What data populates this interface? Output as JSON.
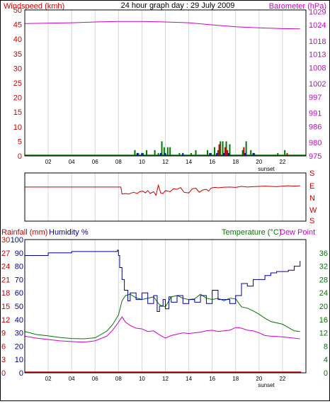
{
  "header": {
    "left_label": "Windspeed (kmh)",
    "title": "24 hour graph day : 29 July 2009",
    "right_label": "Barometer (hPa)"
  },
  "colors": {
    "windspeed": "#cc0000",
    "barometer": "#cc00cc",
    "wind_dir": "#cc0000",
    "gust": "#007700",
    "avg": "#0000cc",
    "rainfall": "#cc0000",
    "humidity": "#000099",
    "temperature": "#007700",
    "dewpoint": "#cc00cc",
    "grid": "#d6d6d6"
  },
  "x_axis": {
    "tick_labels": [
      "02",
      "04",
      "06",
      "08",
      "10",
      "12",
      "14",
      "16",
      "18",
      "20",
      "22"
    ],
    "sunset_label": "sunset"
  },
  "panel2": {
    "dir_labels": [
      "S",
      "E",
      "N",
      "W",
      "S"
    ]
  },
  "panel3": {
    "rain_label": "Rainfall (mm)",
    "humidity_label": "Humidity %",
    "temp_label": "Temperature (°C)",
    "dew_label": "Dew Point"
  },
  "chart_data": [
    {
      "type": "line",
      "title": "24 hour graph day : 29 July 2009",
      "x_unit": "hour",
      "xlim": [
        0,
        24
      ],
      "y_left": {
        "label": "Windspeed (kmh)",
        "ticks": [
          0,
          5,
          10,
          15,
          20,
          25,
          30,
          35,
          40,
          45,
          50
        ],
        "ylim": [
          0,
          50
        ]
      },
      "y_right": {
        "label": "Barometer (hPa)",
        "ticks": [
          975,
          980,
          986,
          991,
          997,
          1002,
          1008,
          1013,
          1018,
          1024,
          1029
        ],
        "ylim": [
          975,
          1029.6
        ]
      },
      "series": [
        {
          "name": "Barometer (hPa)",
          "axis": "right",
          "x": [
            0,
            4,
            6,
            8,
            10,
            12,
            14,
            16,
            18,
            19,
            20,
            22,
            23.5
          ],
          "values": [
            1024.5,
            1024.8,
            1025.1,
            1025.3,
            1025.3,
            1025.1,
            1024.8,
            1024.0,
            1023.3,
            1023.1,
            1022.9,
            1022.6,
            1022.5
          ]
        },
        {
          "axis": "left",
          "style": "bars-green",
          "x": [
            9.4,
            9.7,
            10.1,
            10.4,
            11.1,
            11.4,
            11.7,
            11.9,
            12.2,
            12.4,
            13.2,
            14.2,
            14.6,
            15.6,
            15.9,
            16.2,
            16.5,
            16.7,
            16.9,
            17.2,
            17.5,
            18.6,
            18.9,
            19.3,
            19.6,
            21.6,
            22.2
          ],
          "values": [
            2,
            1,
            1,
            2,
            2,
            1,
            5,
            3,
            3,
            3,
            1,
            1,
            2,
            2,
            1,
            3,
            2,
            5,
            5,
            5,
            4,
            2,
            5,
            2,
            1,
            1,
            2
          ]
        },
        {
          "axis": "left",
          "style": "bars-blue",
          "x": [
            9.6,
            10.0,
            11.6,
            12.0,
            13.5,
            15.8,
            16.4,
            17.0,
            17.4,
            18.8,
            19.5
          ],
          "values": [
            1,
            1,
            1,
            1,
            1,
            1,
            1,
            1,
            1,
            1,
            1
          ]
        },
        {
          "axis": "left",
          "style": "bars-red",
          "x": [
            16.6,
            17.1,
            17.3,
            18.7,
            22.4
          ],
          "values": [
            4,
            3,
            2,
            3,
            1
          ]
        }
      ]
    },
    {
      "type": "line",
      "xlim": [
        0,
        24
      ],
      "y_left": {
        "ticks": [
          "S",
          "E",
          "N",
          "W",
          "S"
        ],
        "ylim": [
          0,
          360
        ]
      },
      "series": [
        {
          "axis": "left",
          "x": [
            0,
            8.2,
            8.3,
            8.6,
            8.9,
            9.1,
            9.3,
            9.6,
            9.8,
            10.1,
            10.3,
            10.5,
            10.7,
            11.0,
            11.2,
            11.4,
            11.6,
            11.8,
            12.0,
            12.2,
            12.4,
            12.7,
            13.0,
            13.3,
            13.6,
            14.0,
            14.3,
            14.6,
            14.9,
            15.2,
            15.5,
            15.7,
            15.9,
            16.1,
            16.3,
            16.5,
            17.0,
            17.5,
            18.0,
            18.5,
            19.0,
            19.5,
            20.0,
            20.5,
            21.0,
            21.5,
            22.0,
            22.5,
            23.0,
            23.5
          ],
          "values": [
            265,
            265,
            205,
            210,
            205,
            215,
            220,
            210,
            225,
            230,
            215,
            235,
            210,
            225,
            195,
            280,
            215,
            210,
            235,
            230,
            225,
            250,
            245,
            260,
            220,
            215,
            250,
            255,
            220,
            240,
            245,
            230,
            255,
            260,
            262,
            258,
            263,
            265,
            262,
            270,
            265,
            268,
            270,
            272,
            270,
            268,
            272,
            275,
            272,
            275
          ]
        }
      ]
    },
    {
      "type": "line",
      "xlim": [
        0,
        24
      ],
      "y_left_outer": {
        "label": "Rainfall (mm)",
        "ticks": [
          0,
          3,
          6,
          9,
          12,
          15,
          18,
          21,
          24,
          27,
          30
        ],
        "ylim": [
          0,
          30
        ]
      },
      "y_left_inner": {
        "label": "Humidity %",
        "ticks": [
          0,
          10,
          20,
          30,
          40,
          50,
          60,
          70,
          80,
          90,
          100
        ],
        "ylim": [
          0,
          100
        ]
      },
      "y_right": {
        "label": "Temperature (°C)",
        "ticks": [
          0,
          4,
          8,
          12,
          16,
          20,
          24,
          28,
          32,
          36
        ],
        "ylim": [
          0,
          40
        ]
      },
      "series": [
        {
          "name": "Humidity %",
          "axis": "inner",
          "x": [
            0,
            2,
            4,
            6,
            7.9,
            8.0,
            8.1,
            8.3,
            8.5,
            8.8,
            9.0,
            9.5,
            10.0,
            10.5,
            11.0,
            11.3,
            11.5,
            11.8,
            12.0,
            12.3,
            12.5,
            13.0,
            13.5,
            14.0,
            14.5,
            15.0,
            15.5,
            16.0,
            16.5,
            17.0,
            17.5,
            18.0,
            18.5,
            19.0,
            19.5,
            20.0,
            20.5,
            21.0,
            21.5,
            22.0,
            22.5,
            23.0,
            23.5
          ],
          "values": [
            88,
            90,
            91,
            91,
            92,
            88,
            79,
            70,
            62,
            54,
            60,
            55,
            60,
            52,
            58,
            46,
            50,
            55,
            48,
            57,
            53,
            58,
            52,
            55,
            53,
            58,
            52,
            62,
            55,
            55,
            52,
            58,
            67,
            65,
            70,
            70,
            73,
            75,
            76,
            76,
            77,
            80,
            84
          ]
        },
        {
          "name": "Temperature (°C)",
          "axis": "right",
          "x": [
            0,
            1,
            2,
            3,
            4,
            5,
            6,
            7,
            7.5,
            8.0,
            8.3,
            8.6,
            9.0,
            9.5,
            10.0,
            10.5,
            11.0,
            11.5,
            12.0,
            12.5,
            13.0,
            13.5,
            14.0,
            14.5,
            15.0,
            15.5,
            16.0,
            16.5,
            17.0,
            17.5,
            18.0,
            18.5,
            19.0,
            19.5,
            20.0,
            20.5,
            21.0,
            22.0,
            23.0,
            23.5
          ],
          "values": [
            12.4,
            11.5,
            11.1,
            10.6,
            10.3,
            10.2,
            10.5,
            12.5,
            14.5,
            17.4,
            21.6,
            23.2,
            23.6,
            22.5,
            22.0,
            22.4,
            22.8,
            20.4,
            19.8,
            22.8,
            23.2,
            22.4,
            22.0,
            22.2,
            23.6,
            22.4,
            22.0,
            22.4,
            21.6,
            22.4,
            22.2,
            19.8,
            19.4,
            18.6,
            17.6,
            16.4,
            15.4,
            14.6,
            12.6,
            12.4
          ]
        },
        {
          "name": "Dew Point",
          "axis": "right",
          "x": [
            0,
            1,
            2,
            3,
            4,
            5,
            6,
            7,
            7.5,
            8.0,
            8.3,
            8.6,
            9.0,
            9.5,
            10.0,
            10.5,
            11.0,
            11.5,
            12.0,
            12.5,
            13.0,
            13.5,
            14.0,
            14.5,
            15.0,
            15.5,
            16.0,
            16.5,
            17.0,
            17.5,
            18.0,
            18.5,
            19.0,
            19.5,
            20.0,
            20.5,
            21.0,
            22.0,
            23.0,
            23.5
          ],
          "values": [
            11.0,
            10.4,
            10.0,
            9.6,
            9.4,
            9.2,
            9.6,
            11.0,
            12.8,
            15.2,
            16.8,
            15.2,
            14.2,
            13.4,
            13.2,
            12.4,
            12.6,
            11.4,
            10.4,
            11.2,
            11.6,
            12.0,
            11.8,
            12.0,
            12.2,
            12.6,
            12.8,
            12.4,
            12.6,
            12.8,
            13.6,
            13.4,
            12.8,
            12.6,
            12.0,
            11.2,
            11.0,
            10.8,
            10.4,
            10.2
          ]
        },
        {
          "name": "Rainfall (mm)",
          "axis": "outer",
          "x": [
            0,
            23.6
          ],
          "values": [
            0,
            0
          ]
        }
      ]
    }
  ]
}
